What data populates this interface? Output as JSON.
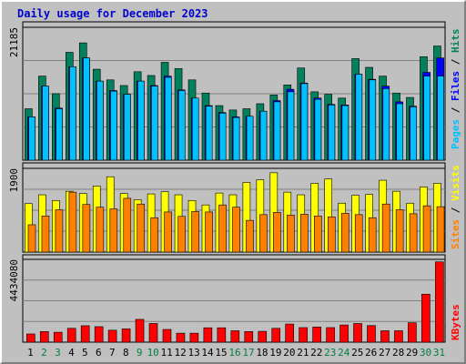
{
  "title": "Daily usage for December 2023",
  "colors": {
    "background": "#C0C0C0",
    "panel": "#C0C0C0",
    "hits": "#00805C",
    "files": "#0000FF",
    "pages": "#00C0FF",
    "visits": "#FFFF00",
    "sites": "#FF8000",
    "kbytes": "#FF0000",
    "title": "#0000CC",
    "weekend_label": "#008040"
  },
  "chart_data": [
    {
      "type": "bar",
      "title": "Daily usage for December 2023",
      "categories": [
        "1",
        "2",
        "3",
        "4",
        "5",
        "6",
        "7",
        "8",
        "9",
        "10",
        "11",
        "12",
        "13",
        "14",
        "15",
        "16",
        "17",
        "18",
        "19",
        "20",
        "21",
        "22",
        "23",
        "24",
        "25",
        "26",
        "27",
        "28",
        "29",
        "30",
        "31"
      ],
      "weekend_days": [
        "2",
        "3",
        "9",
        "10",
        "16",
        "17",
        "23",
        "24",
        "30",
        "31"
      ],
      "y_tick_label": "21185",
      "ylim": [
        0,
        21185
      ],
      "legend": [
        "Hits",
        "Files",
        "Pages"
      ],
      "legend_position": "right",
      "series": [
        {
          "name": "Hits",
          "values": [
            8200,
            13400,
            10600,
            17200,
            18700,
            14500,
            12800,
            11900,
            14100,
            13500,
            15600,
            14600,
            12800,
            10700,
            8700,
            8000,
            8200,
            9000,
            10400,
            12000,
            14700,
            10900,
            10500,
            9900,
            16200,
            14800,
            13400,
            10700,
            10000,
            16500,
            18200
          ]
        },
        {
          "name": "Files",
          "values": [
            6900,
            11800,
            8300,
            14900,
            16300,
            12600,
            11100,
            10500,
            12600,
            11900,
            13400,
            11200,
            9900,
            8700,
            7600,
            6900,
            7000,
            7800,
            9500,
            11300,
            12300,
            9900,
            8900,
            8800,
            13700,
            12900,
            11800,
            9300,
            8600,
            14000,
            16300
          ]
        },
        {
          "name": "Pages",
          "values": [
            6900,
            11800,
            8200,
            14900,
            16300,
            12600,
            11000,
            10500,
            12600,
            11800,
            13200,
            11100,
            9900,
            8600,
            7500,
            6800,
            7000,
            7800,
            9300,
            10900,
            12200,
            9700,
            8800,
            8700,
            13700,
            12800,
            11400,
            9000,
            8500,
            13400,
            13400
          ]
        }
      ]
    },
    {
      "type": "bar",
      "categories": [
        "1",
        "2",
        "3",
        "4",
        "5",
        "6",
        "7",
        "8",
        "9",
        "10",
        "11",
        "12",
        "13",
        "14",
        "15",
        "16",
        "17",
        "18",
        "19",
        "20",
        "21",
        "22",
        "23",
        "24",
        "25",
        "26",
        "27",
        "28",
        "29",
        "30",
        "31"
      ],
      "y_tick_label": "1900",
      "ylim": [
        0,
        1900
      ],
      "legend": [
        "Visits",
        "Sites"
      ],
      "legend_position": "right",
      "series": [
        {
          "name": "Visits",
          "values": [
            1100,
            1300,
            1170,
            1380,
            1330,
            1500,
            1710,
            1330,
            1190,
            1320,
            1370,
            1300,
            1170,
            1070,
            1340,
            1300,
            1580,
            1640,
            1800,
            1360,
            1300,
            1560,
            1660,
            1110,
            1290,
            1310,
            1630,
            1380,
            1110,
            1480,
            1560
          ]
        },
        {
          "name": "Sites",
          "values": [
            620,
            820,
            960,
            1360,
            1080,
            1020,
            980,
            1220,
            1090,
            780,
            910,
            810,
            920,
            910,
            1070,
            1020,
            720,
            850,
            900,
            840,
            860,
            820,
            800,
            880,
            850,
            780,
            1090,
            960,
            870,
            1050,
            1030
          ]
        }
      ]
    },
    {
      "type": "bar",
      "categories": [
        "1",
        "2",
        "3",
        "4",
        "5",
        "6",
        "7",
        "8",
        "9",
        "10",
        "11",
        "12",
        "13",
        "14",
        "15",
        "16",
        "17",
        "18",
        "19",
        "20",
        "21",
        "22",
        "23",
        "24",
        "25",
        "26",
        "27",
        "28",
        "29",
        "30",
        "31"
      ],
      "y_tick_label": "4434080",
      "ylim": [
        0,
        4434080
      ],
      "legend": [
        "KBytes"
      ],
      "legend_position": "right",
      "series": [
        {
          "name": "KBytes",
          "values": [
            440000,
            570000,
            530000,
            740000,
            880000,
            830000,
            640000,
            710000,
            1220000,
            1000000,
            680000,
            480000,
            480000,
            770000,
            770000,
            610000,
            570000,
            580000,
            740000,
            970000,
            780000,
            810000,
            780000,
            920000,
            1000000,
            890000,
            610000,
            610000,
            1040000,
            2570000,
            4300000
          ]
        }
      ]
    }
  ]
}
